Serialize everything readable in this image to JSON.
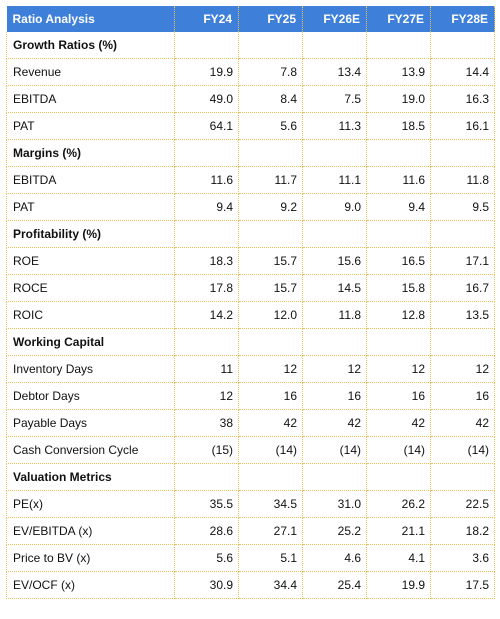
{
  "header": {
    "label": "Ratio Analysis",
    "years": [
      "FY24",
      "FY25",
      "FY26E",
      "FY27E",
      "FY28E"
    ]
  },
  "rows": [
    {
      "type": "section",
      "label": "Growth Ratios (%)"
    },
    {
      "type": "data",
      "label": "Revenue",
      "values": [
        "19.9",
        "7.8",
        "13.4",
        "13.9",
        "14.4"
      ]
    },
    {
      "type": "data",
      "label": "EBITDA",
      "values": [
        "49.0",
        "8.4",
        "7.5",
        "19.0",
        "16.3"
      ]
    },
    {
      "type": "data",
      "label": "PAT",
      "values": [
        "64.1",
        "5.6",
        "11.3",
        "18.5",
        "16.1"
      ]
    },
    {
      "type": "section",
      "label": "Margins (%)"
    },
    {
      "type": "data",
      "label": "EBITDA",
      "values": [
        "11.6",
        "11.7",
        "11.1",
        "11.6",
        "11.8"
      ]
    },
    {
      "type": "data",
      "label": "PAT",
      "values": [
        "9.4",
        "9.2",
        "9.0",
        "9.4",
        "9.5"
      ]
    },
    {
      "type": "section",
      "label": "Profitability (%)"
    },
    {
      "type": "data",
      "label": "ROE",
      "values": [
        "18.3",
        "15.7",
        "15.6",
        "16.5",
        "17.1"
      ]
    },
    {
      "type": "data",
      "label": "ROCE",
      "values": [
        "17.8",
        "15.7",
        "14.5",
        "15.8",
        "16.7"
      ]
    },
    {
      "type": "data",
      "label": "ROIC",
      "values": [
        "14.2",
        "12.0",
        "11.8",
        "12.8",
        "13.5"
      ]
    },
    {
      "type": "section",
      "label": "Working Capital"
    },
    {
      "type": "data",
      "label": "Inventory Days",
      "values": [
        "11",
        "12",
        "12",
        "12",
        "12"
      ]
    },
    {
      "type": "data",
      "label": "Debtor Days",
      "values": [
        "12",
        "16",
        "16",
        "16",
        "16"
      ]
    },
    {
      "type": "data",
      "label": "Payable Days",
      "values": [
        "38",
        "42",
        "42",
        "42",
        "42"
      ]
    },
    {
      "type": "data",
      "label": "Cash Conversion Cycle",
      "values": [
        "(15)",
        "(14)",
        "(14)",
        "(14)",
        "(14)"
      ]
    },
    {
      "type": "section",
      "label": "Valuation Metrics"
    },
    {
      "type": "data",
      "label": "PE(x)",
      "values": [
        "35.5",
        "34.5",
        "31.0",
        "26.2",
        "22.5"
      ]
    },
    {
      "type": "data",
      "label": "EV/EBITDA (x)",
      "values": [
        "28.6",
        "27.1",
        "25.2",
        "21.1",
        "18.2"
      ]
    },
    {
      "type": "data",
      "label": "Price to BV (x)",
      "values": [
        "5.6",
        "5.1",
        "4.6",
        "4.1",
        "3.6"
      ]
    },
    {
      "type": "data",
      "label": "EV/OCF (x)",
      "values": [
        "30.9",
        "34.4",
        "25.4",
        "19.9",
        "17.5"
      ]
    }
  ]
}
